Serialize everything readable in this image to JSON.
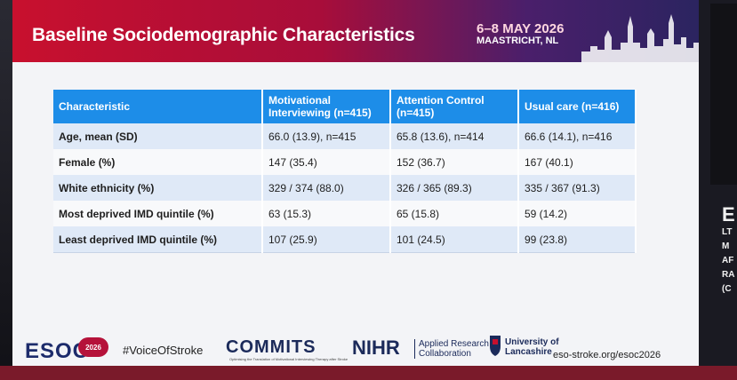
{
  "slide": {
    "title": "Baseline Sociodemographic Characteristics",
    "event_date": "6–8 MAY 2026",
    "event_place": "MAASTRICHT, NL"
  },
  "table": {
    "headers": [
      "Characteristic",
      "Motivational Interviewing (n=415)",
      "Attention Control (n=415)",
      "Usual care (n=416)"
    ],
    "rows": [
      [
        "Age, mean (SD)",
        "66.0 (13.9), n=415",
        "65.8 (13.6), n=414",
        "66.6 (14.1), n=416"
      ],
      [
        "Female (%)",
        "147 (35.4)",
        "152 (36.7)",
        "167 (40.1)"
      ],
      [
        "White ethnicity (%)",
        "329 / 374 (88.0)",
        "326 / 365 (89.3)",
        "335 / 367 (91.3)"
      ],
      [
        "Most deprived IMD quintile (%)",
        "63 (15.3)",
        "65 (15.8)",
        "59 (14.2)"
      ],
      [
        "Least deprived IMD quintile (%)",
        "107 (25.9)",
        "101 (24.5)",
        "99 (23.8)"
      ]
    ]
  },
  "footer": {
    "esoc": "ESOC",
    "esoc_badge": "2026",
    "hashtag": "#VoiceOfStroke",
    "commits": "COMMITS",
    "commits_sub": "Optimising the Translation of Motivational Interviewing Therapy after Stroke",
    "nihr": "NIHR",
    "arc_line1": "Applied Research",
    "arc_line2": "Collaboration",
    "uni_line1": "University of",
    "uni_line2": "Lancashire",
    "site": "eso-stroke.org/esoc2026"
  },
  "side_screen": {
    "big": "E",
    "lines": [
      "LT",
      "M",
      "AF",
      "RA",
      "(C"
    ]
  },
  "colors": {
    "header_red": "#c8102e",
    "header_purple": "#2b2460",
    "table_header_blue": "#1d8de8",
    "row_tint": "#dfe9f7",
    "navy": "#1b2a5a"
  }
}
